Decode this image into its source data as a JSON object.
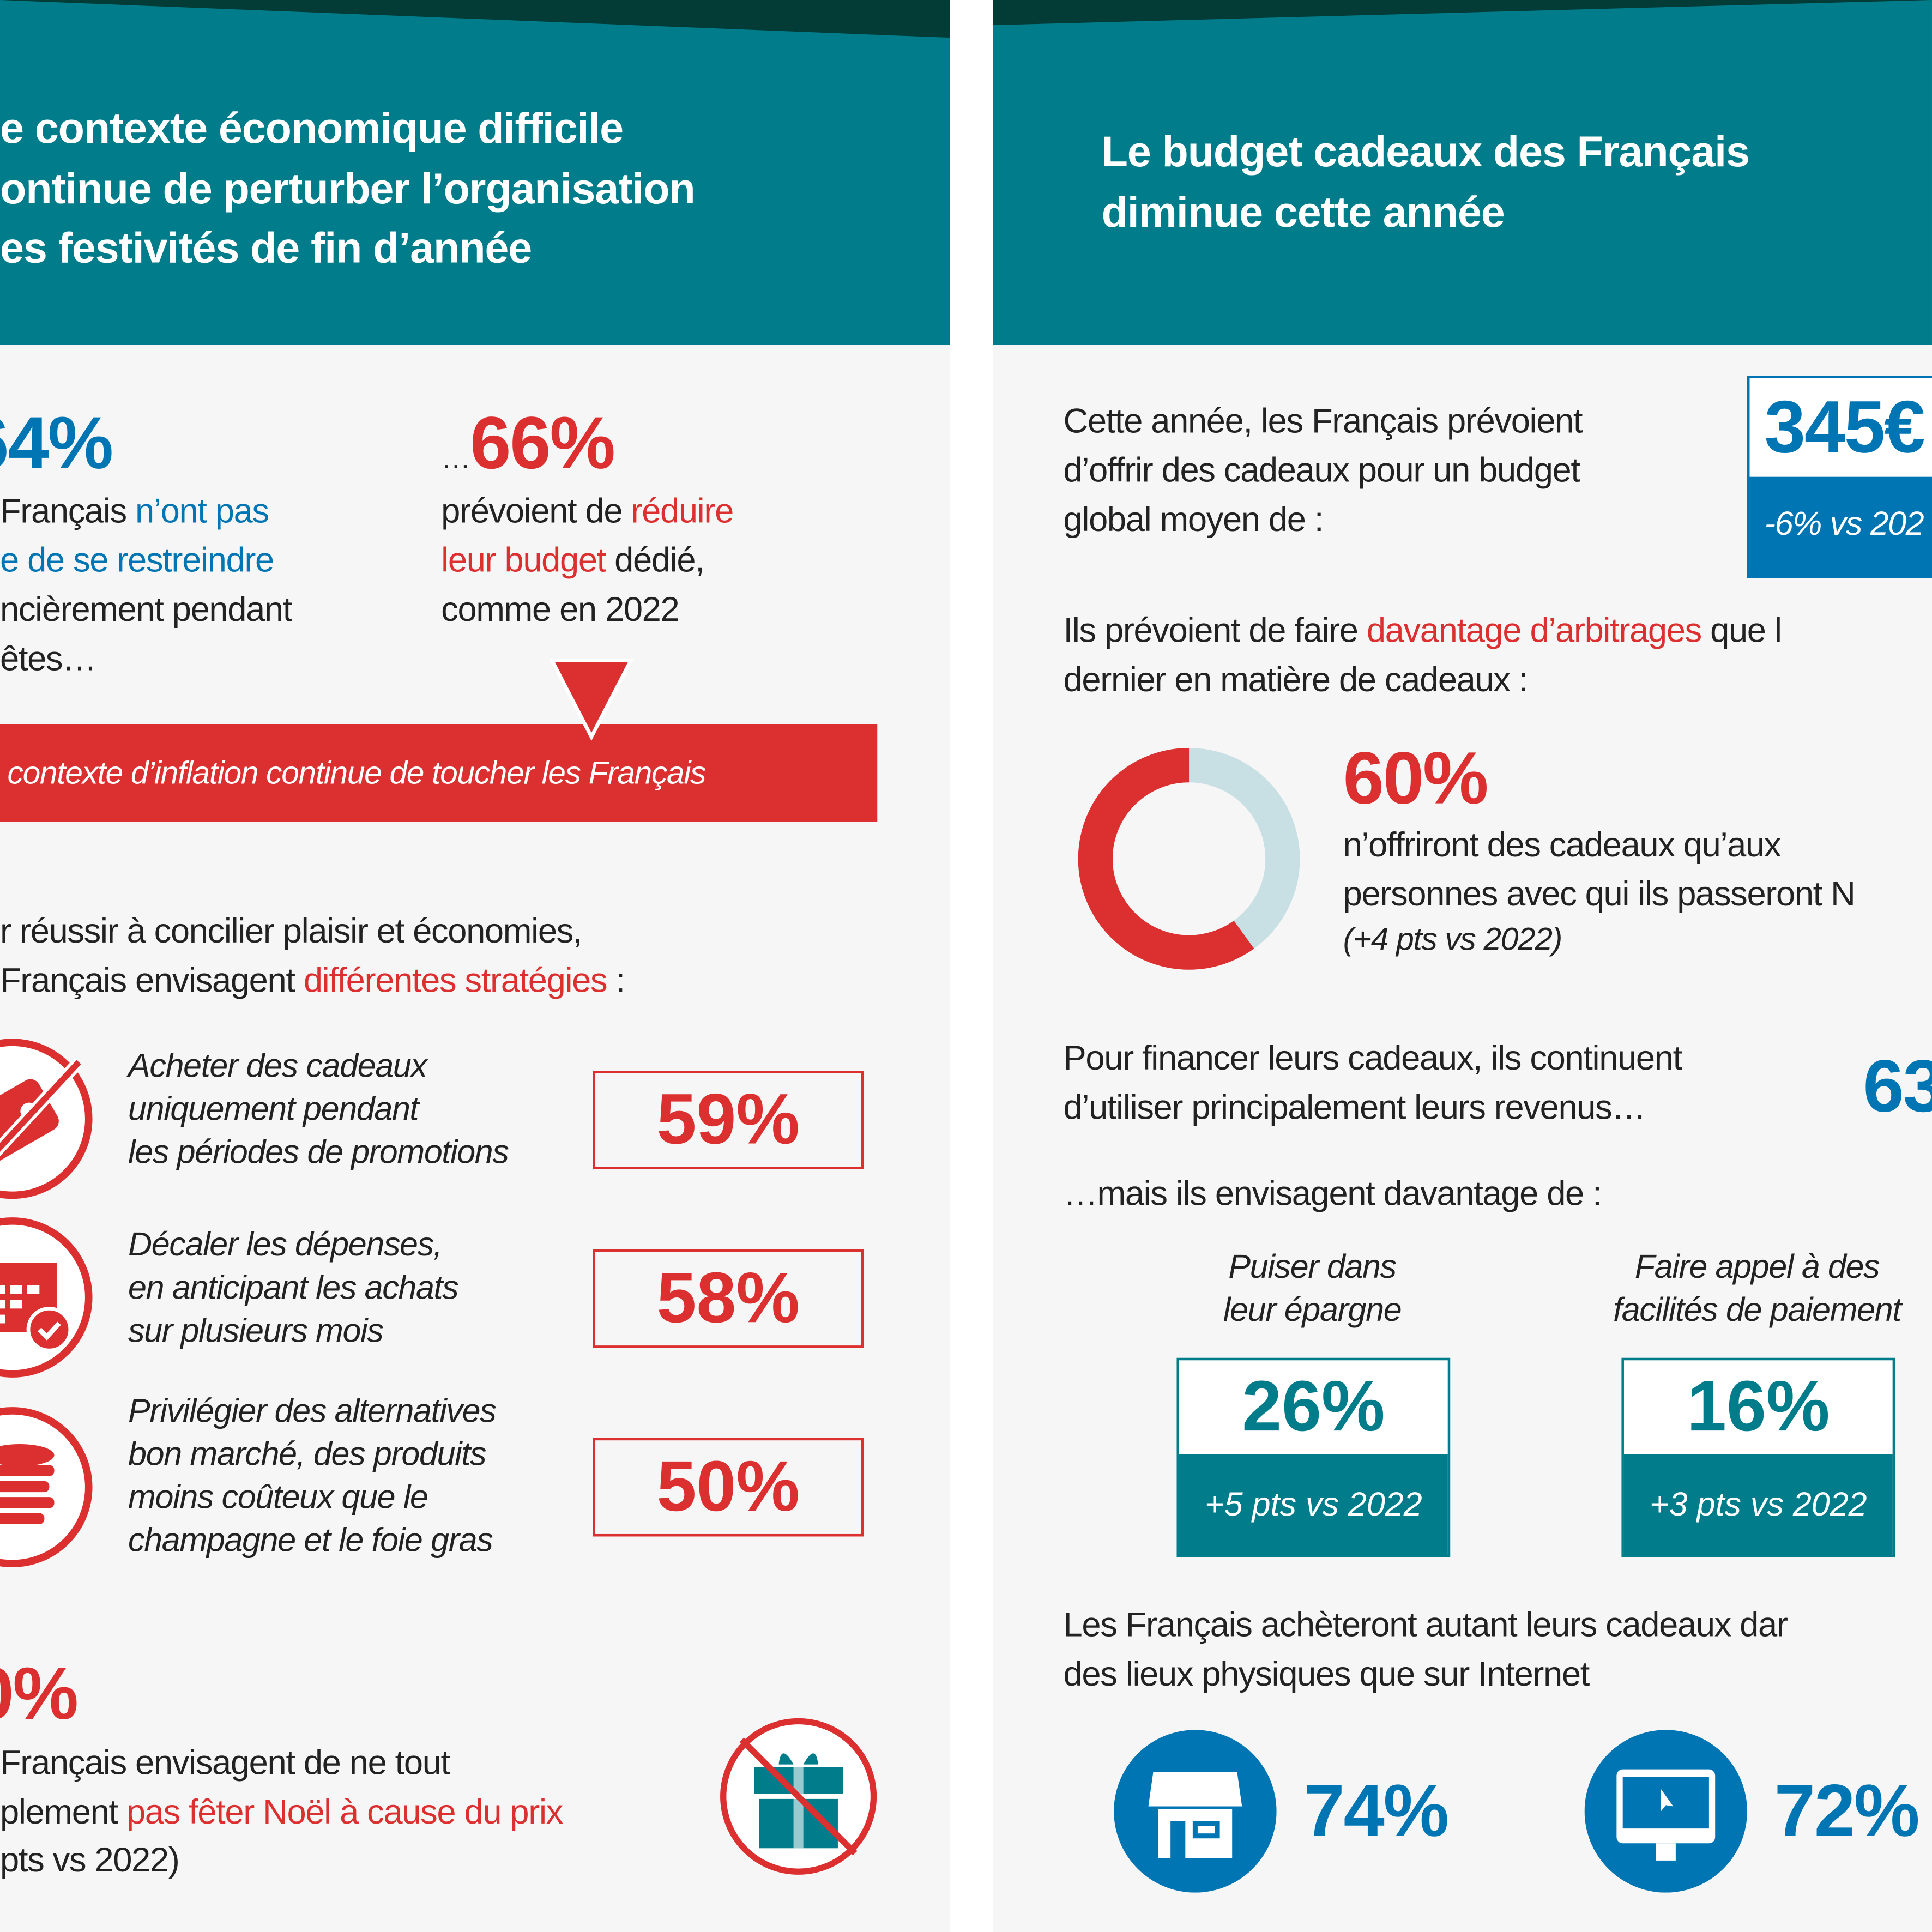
{
  "colors": {
    "teal": "#007c8a",
    "dark_green": "#033b36",
    "blue": "#0075b4",
    "red": "#dc2f2f",
    "light_teal": "#c8e0e4",
    "background": "#f6f6f6"
  },
  "left": {
    "title_lines": [
      "e contexte économique difficile",
      "ontinue de perturber l’organisation",
      "es festivités de fin d’année"
    ],
    "stat1": {
      "value": "64%",
      "line1_a": "Français ",
      "line1_b": "n’ont pas",
      "line2": "e de se restreindre",
      "line3": "ncièrement pendant",
      "line4": "êtes…"
    },
    "stat2": {
      "prefix": "…",
      "value": "66%",
      "line1_a": "prévoient de ",
      "line1_b": "réduire",
      "line2_a": "leur budget",
      "line2_b": " dédié,",
      "line3": "comme en 2022"
    },
    "banner": "contexte d’inflation continue de toucher les Français",
    "intro_line1": "r réussir à concilier plaisir et économies,",
    "intro_line2_a": "Français envisagent ",
    "intro_line2_b": "différentes stratégies",
    "intro_line2_c": " :",
    "strategies": [
      {
        "icon": "price-tag-crossed-icon",
        "lines": [
          "Acheter des cadeaux",
          "uniquement pendant",
          "les périodes de promotions"
        ],
        "value": "59%"
      },
      {
        "icon": "calendar-check-icon",
        "lines": [
          "Décaler les dépenses,",
          "en anticipant les achats",
          "sur plusieurs mois"
        ],
        "value": "58%"
      },
      {
        "icon": "coin-stack-icon",
        "lines": [
          "Privilégier des alternatives",
          "bon marché, des produits",
          "moins coûteux que le",
          "champagne et le foie gras"
        ],
        "value": "50%"
      }
    ],
    "bottom": {
      "value": "0%",
      "line1": "Français envisagent de ne tout",
      "line2_a": "plement ",
      "line2_b": "pas fêter Noël à cause du prix",
      "line3": "pts vs 2022)",
      "icon": "gift-crossed-icon"
    }
  },
  "right": {
    "title_lines": [
      "Le budget cadeaux des Français",
      "diminue cette année"
    ],
    "budget_text": [
      "Cette année, les Français prévoient",
      "d’offrir des cadeaux pour un budget",
      "global moyen de :"
    ],
    "budget_value": "345€",
    "budget_change": "-6% vs 202",
    "arbitrage_a": "Ils prévoient de faire ",
    "arbitrage_b": "davantage d’arbitrages",
    "arbitrage_c": " que l",
    "arbitrage_line2": "dernier en matière de cadeaux :",
    "donut": {
      "value": "60%",
      "percent": 60,
      "lines": [
        "n’offriront des cadeaux qu’aux",
        "personnes avec qui ils passeront N"
      ],
      "change": "(+4 pts vs 2022)"
    },
    "finance_lines": [
      "Pour financer leurs cadeaux, ils continuent",
      "d’utiliser principalement leurs revenus…"
    ],
    "finance_value": "63",
    "mais": "…mais ils envisagent davantage de :",
    "options": [
      {
        "lines": [
          "Puiser dans",
          "leur épargne"
        ],
        "value": "26%",
        "change": "+5 pts vs 2022"
      },
      {
        "lines": [
          "Faire appel à des",
          "facilités de paiement"
        ],
        "value": "16%",
        "change": "+3 pts vs 2022"
      }
    ],
    "shop_lines": [
      "Les Français achèteront autant leurs cadeaux dar",
      "des lieux physiques que sur Internet"
    ],
    "channels": [
      {
        "icon": "store-icon",
        "value": "74%"
      },
      {
        "icon": "computer-icon",
        "value": "72%"
      }
    ]
  }
}
